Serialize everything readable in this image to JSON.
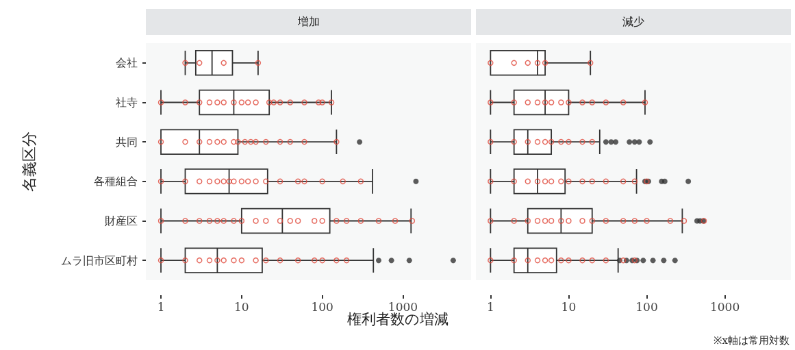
{
  "chart_data": [
    {
      "type": "box",
      "title": "増加",
      "orientation": "horizontal",
      "ylabel": "名義区分",
      "xlabel": "権利者数の増減",
      "annotations": [
        "※x軸は常用対数"
      ],
      "log": "x",
      "grid": false,
      "xlim": [
        0.65,
        7000
      ],
      "xticks": [
        1,
        10,
        100,
        1000
      ],
      "categories": [
        "会社",
        "社寺",
        "共同",
        "各種組合",
        "財産区",
        "ムラ旧市区町村"
      ],
      "series": [
        {
          "type": "box",
          "color": "#333333",
          "boxes": [
            {
              "low": 2,
              "q1": 2.7,
              "median": 4.3,
              "q3": 7.7,
              "high": 16
            },
            {
              "low": 1,
              "q1": 3,
              "median": 8,
              "q3": 22,
              "high": 130
            },
            {
              "low": 1,
              "q1": 1,
              "median": 3,
              "q3": 9,
              "high": 150,
              "outliers": [
                290
              ]
            },
            {
              "low": 1,
              "q1": 2,
              "median": 7,
              "q3": 21,
              "high": 420,
              "outliers": [
                1450
              ]
            },
            {
              "low": 1,
              "q1": 10,
              "median": 32,
              "q3": 124,
              "high": 1260
            },
            {
              "low": 1,
              "q1": 2,
              "median": 5,
              "q3": 18,
              "high": 430,
              "outliers": [
                500,
                720,
                1200,
                4200
              ]
            }
          ]
        },
        {
          "type": "scatter",
          "color": "#e0473a",
          "marker": "circle",
          "x": [
            "会社",
            "会社",
            "会社",
            "会社",
            "社寺",
            "社寺",
            "社寺",
            "社寺",
            "社寺",
            "社寺",
            "社寺",
            "社寺",
            "社寺",
            "社寺",
            "社寺",
            "社寺",
            "社寺",
            "社寺",
            "社寺",
            "社寺",
            "社寺",
            "社寺",
            "共同",
            "共同",
            "共同",
            "共同",
            "共同",
            "共同",
            "共同",
            "共同",
            "共同",
            "共同",
            "共同",
            "共同",
            "共同",
            "共同",
            "共同",
            "共同",
            "各種組合",
            "各種組合",
            "各種組合",
            "各種組合",
            "各種組合",
            "各種組合",
            "各種組合",
            "各種組合",
            "各種組合",
            "各種組合",
            "各種組合",
            "各種組合",
            "各種組合",
            "各種組合",
            "各種組合",
            "各種組合",
            "各種組合",
            "各種組合",
            "財産区",
            "財産区",
            "財産区",
            "財産区",
            "財産区",
            "財産区",
            "財産区",
            "財産区",
            "財産区",
            "財産区",
            "財産区",
            "財産区",
            "財産区",
            "財産区",
            "財産区",
            "財産区",
            "財産区",
            "財産区",
            "財産区",
            "財産区",
            "財産区",
            "ムラ旧市区町村",
            "ムラ旧市区町村",
            "ムラ旧市区町村",
            "ムラ旧市区町村",
            "ムラ旧市区町村",
            "ムラ旧市区町村",
            "ムラ旧市区町村",
            "ムラ旧市区町村",
            "ムラ旧市区町村",
            "ムラ旧市区町村",
            "ムラ旧市区町村",
            "ムラ旧市区町村",
            "ムラ旧市区町村",
            "ムラ旧市区町村",
            "ムラ旧市区町村",
            "ムラ旧市区町村"
          ],
          "values": [
            2,
            3,
            6,
            16,
            1,
            2,
            3,
            4,
            5,
            6,
            8,
            10,
            12,
            15,
            22,
            25,
            30,
            40,
            60,
            90,
            100,
            130,
            1,
            2,
            3,
            4,
            5,
            6,
            8,
            9,
            11,
            13,
            15,
            20,
            30,
            40,
            60,
            150,
            1,
            2,
            3,
            4,
            5,
            6,
            7,
            8,
            10,
            12,
            15,
            20,
            30,
            50,
            60,
            100,
            180,
            300,
            1,
            2,
            3,
            4,
            5,
            6,
            8,
            10,
            15,
            20,
            30,
            40,
            50,
            80,
            100,
            150,
            200,
            300,
            500,
            800,
            1300,
            1,
            2,
            3,
            4,
            5,
            6,
            8,
            10,
            15,
            20,
            30,
            50,
            80,
            100,
            150,
            200
          ]
        }
      ]
    },
    {
      "type": "box",
      "title": "減少",
      "orientation": "horizontal",
      "log": "x",
      "grid": false,
      "tick_labels": "x",
      "xlim": [
        0.65,
        7000
      ],
      "xticks": [
        1,
        10,
        100,
        1000
      ],
      "categories": [
        "会社",
        "社寺",
        "共同",
        "各種組合",
        "財産区",
        "ムラ旧市区町村"
      ],
      "series": [
        {
          "type": "box",
          "color": "#333333",
          "boxes": [
            {
              "low": 1,
              "q1": 1,
              "median": 4,
              "q3": 5,
              "high": 19
            },
            {
              "low": 1,
              "q1": 2,
              "median": 5,
              "q3": 10,
              "high": 95
            },
            {
              "low": 1,
              "q1": 2,
              "median": 3,
              "q3": 6,
              "high": 25,
              "outliers": [
                30,
                35,
                40,
                60,
                70,
                80,
                110
              ]
            },
            {
              "low": 1,
              "q1": 2,
              "median": 4,
              "q3": 9,
              "high": 74,
              "outliers": [
                95,
                105,
                155,
                170,
                340
              ]
            },
            {
              "low": 1,
              "q1": 3,
              "median": 8,
              "q3": 20,
              "high": 285,
              "outliers": [
                440,
                480,
                530
              ]
            },
            {
              "low": 1,
              "q1": 2,
              "median": 3,
              "q3": 7,
              "high": 43,
              "outliers": [
                45,
                55,
                65,
                75,
                90,
                120,
                165,
                230
              ]
            }
          ]
        },
        {
          "type": "scatter",
          "color": "#e0473a",
          "marker": "circle",
          "x": [
            "会社",
            "会社",
            "会社",
            "会社",
            "会社",
            "会社",
            "社寺",
            "社寺",
            "社寺",
            "社寺",
            "社寺",
            "社寺",
            "社寺",
            "社寺",
            "社寺",
            "社寺",
            "社寺",
            "社寺",
            "社寺",
            "共同",
            "共同",
            "共同",
            "共同",
            "共同",
            "共同",
            "共同",
            "共同",
            "共同",
            "共同",
            "各種組合",
            "各種組合",
            "各種組合",
            "各種組合",
            "各種組合",
            "各種組合",
            "各種組合",
            "各種組合",
            "各種組合",
            "各種組合",
            "各種組合",
            "各種組合",
            "各種組合",
            "各種組合",
            "財産区",
            "財産区",
            "財産区",
            "財産区",
            "財産区",
            "財産区",
            "財産区",
            "財産区",
            "財産区",
            "財産区",
            "財産区",
            "財産区",
            "財産区",
            "財産区",
            "財産区",
            "財産区",
            "財産区",
            "ムラ旧市区町村",
            "ムラ旧市区町村",
            "ムラ旧市区町村",
            "ムラ旧市区町村",
            "ムラ旧市区町村",
            "ムラ旧市区町村",
            "ムラ旧市区町村",
            "ムラ旧市区町村",
            "ムラ旧市区町村",
            "ムラ旧市区町村",
            "ムラ旧市区町村",
            "ムラ旧市区町村",
            "ムラ旧市区町村"
          ],
          "values": [
            1,
            2,
            3,
            4,
            5,
            19,
            1,
            2,
            3,
            4,
            5,
            6,
            8,
            10,
            15,
            20,
            30,
            50,
            95,
            1,
            2,
            3,
            4,
            5,
            6,
            8,
            10,
            15,
            20,
            1,
            2,
            3,
            4,
            5,
            6,
            8,
            10,
            15,
            20,
            30,
            50,
            70,
            100,
            1,
            2,
            3,
            4,
            5,
            6,
            8,
            10,
            15,
            20,
            30,
            50,
            70,
            100,
            200,
            300,
            540,
            1,
            2,
            3,
            4,
            5,
            6,
            8,
            10,
            15,
            20,
            30,
            50,
            70
          ]
        }
      ]
    }
  ]
}
